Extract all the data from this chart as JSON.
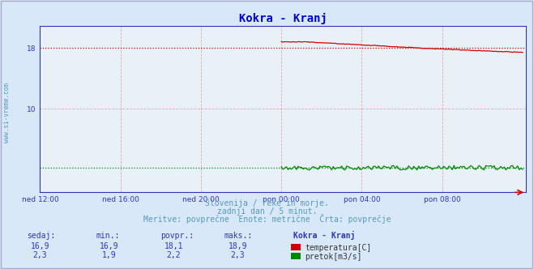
{
  "title": "Kokra - Kranj",
  "title_color": "#0000cc",
  "bg_color": "#d8e8f8",
  "plot_bg_color": "#e8f0f8",
  "xlabel_ticks": [
    "ned 12:00",
    "ned 16:00",
    "ned 20:00",
    "pon 00:00",
    "pon 04:00",
    "pon 08:00"
  ],
  "tick_positions": [
    0,
    48,
    96,
    144,
    192,
    240
  ],
  "ylim": [
    -1,
    21
  ],
  "xlim": [
    0,
    290
  ],
  "footer_line1": "Slovenija / reke in morje.",
  "footer_line2": "zadnji dan / 5 minut.",
  "footer_line3": "Meritve: povprečne  Enote: metrične  Črta: povprečje",
  "footer_color": "#5599bb",
  "table_header": [
    "sedaj:",
    "min.:",
    "povpr.:",
    "maks.:",
    "Kokra - Kranj"
  ],
  "table_row1": [
    "16,9",
    "16,9",
    "18,1",
    "18,9"
  ],
  "table_row1_label": "temperatura[C]",
  "table_row1_color": "#cc0000",
  "table_row2": [
    "2,3",
    "1,9",
    "2,2",
    "2,3"
  ],
  "table_row2_label": "pretok[m3/s]",
  "table_row2_color": "#008800",
  "temp_avg": 18.1,
  "flow_avg": 2.2,
  "grid_v_color": "#dd9999",
  "grid_h_color": "#dd9999",
  "axis_color": "#3333bb",
  "spine_color": "#3333bb",
  "watermark": "www.si-vreme.com",
  "watermark_color": "#5599bb",
  "border_color": "#aaaacc"
}
